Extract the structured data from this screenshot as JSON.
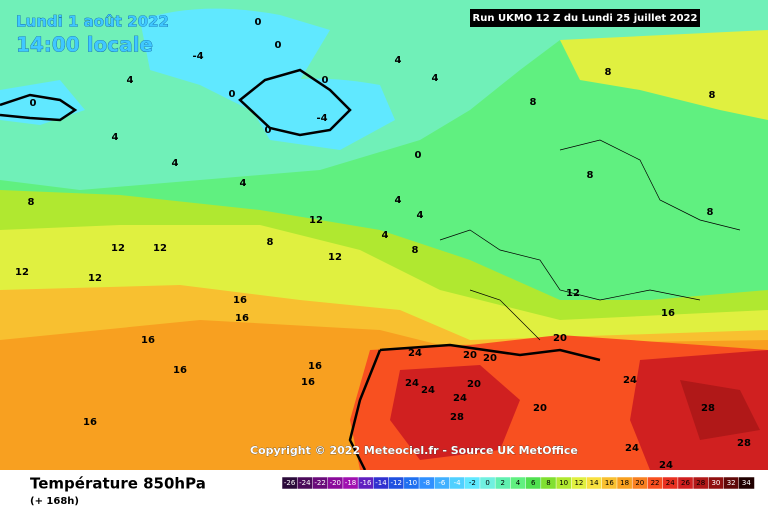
{
  "header": {
    "date": "Lundi 1 août 2022",
    "time": "14:00 locale",
    "run": "Run UKMO 12 Z du Lundi 25 juillet 2022"
  },
  "copyright": "Copyright © 2022 Meteociel.fr - Source UK MetOffice",
  "footer": {
    "title": "Température 850hPa",
    "subtitle": "(+ 168h)"
  },
  "legend": {
    "ticks": [
      -26,
      -24,
      -22,
      -20,
      -18,
      -16,
      -14,
      -12,
      -10,
      -8,
      -6,
      -4,
      -2,
      0,
      2,
      4,
      6,
      8,
      10,
      12,
      14,
      16,
      18,
      20,
      22,
      24,
      26,
      28,
      30,
      32,
      34
    ],
    "colors": [
      "#2a0a3a",
      "#4b0a5a",
      "#6a0a7a",
      "#8a0a9a",
      "#a010b0",
      "#6020c0",
      "#3030d0",
      "#2050e0",
      "#2070f0",
      "#3090ff",
      "#40b0ff",
      "#50d0ff",
      "#60e8ff",
      "#70f0e0",
      "#60f0b0",
      "#60f080",
      "#50e050",
      "#80e030",
      "#b0e830",
      "#e0f040",
      "#f8e040",
      "#f8c030",
      "#f8a020",
      "#f88020",
      "#f85020",
      "#e83020",
      "#d02020",
      "#b01818",
      "#901010",
      "#600808",
      "#200000"
    ]
  },
  "contour_labels": [
    "0",
    "0",
    "-4",
    "0",
    "0",
    "-4",
    "0",
    "0",
    "0",
    "4",
    "4",
    "4",
    "4",
    "4",
    "4",
    "8",
    "8",
    "8",
    "8",
    "8",
    "4",
    "4",
    "4",
    "8",
    "8",
    "8",
    "12",
    "12",
    "12",
    "12",
    "12",
    "12",
    "16",
    "16",
    "16",
    "16",
    "16",
    "16",
    "16",
    "20",
    "20",
    "20",
    "20",
    "20",
    "24",
    "24",
    "24",
    "24",
    "28",
    "28",
    "28",
    "24",
    "24",
    "24",
    "12",
    "16"
  ]
}
